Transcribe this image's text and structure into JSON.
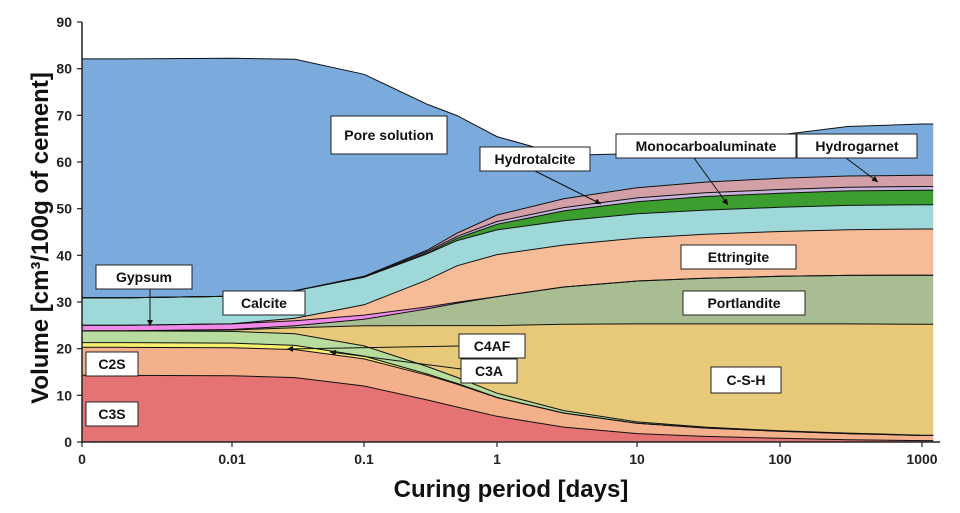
{
  "chart_data": {
    "type": "area",
    "stacked": true,
    "xlabel": "Curing period [days]",
    "ylabel": "Volume [cm³/100g of cement]",
    "x_scale": "log-with-zero",
    "x_ticks": [
      "0",
      "0.01",
      "0.1",
      "1",
      "10",
      "100",
      "1000"
    ],
    "y_ticks": [
      0,
      10,
      20,
      30,
      40,
      50,
      60,
      70,
      80,
      90
    ],
    "ylim": [
      0,
      90
    ],
    "xlim": [
      0,
      1200
    ],
    "grid": false,
    "x": [
      0,
      0.001,
      0.01,
      0.03,
      0.1,
      0.3,
      0.5,
      1,
      3,
      10,
      30,
      100,
      300,
      1000,
      1200
    ],
    "series": [
      {
        "name": "C3S",
        "color": "#e57373",
        "values": [
          14.3,
          14.3,
          14.2,
          13.8,
          12.0,
          9.0,
          7.5,
          5.5,
          3.2,
          1.8,
          1.2,
          0.8,
          0.5,
          0.3,
          0.3
        ]
      },
      {
        "name": "C2S",
        "color": "#f4b08a",
        "values": [
          6.0,
          6.0,
          6.0,
          6.0,
          5.8,
          5.3,
          4.9,
          4.0,
          3.0,
          2.2,
          1.8,
          1.5,
          1.3,
          1.1,
          1.1
        ]
      },
      {
        "name": "C3A",
        "color": "#f7f06e",
        "values": [
          1.0,
          1.0,
          1.0,
          0.9,
          0.6,
          0.25,
          0.15,
          0.05,
          0.02,
          0.0,
          0.0,
          0.0,
          0.0,
          0.0,
          0.0
        ]
      },
      {
        "name": "C4AF",
        "color": "#b8dc9e",
        "values": [
          2.5,
          2.5,
          2.5,
          2.5,
          2.2,
          1.6,
          1.3,
          0.9,
          0.5,
          0.3,
          0.2,
          0.1,
          0.1,
          0.05,
          0.05
        ]
      },
      {
        "name": "C-S-H",
        "color": "#e8c97a",
        "values": [
          0.0,
          0.0,
          0.3,
          1.3,
          4.3,
          8.8,
          11.1,
          14.5,
          18.5,
          21.0,
          22.1,
          22.9,
          23.4,
          23.8,
          23.8
        ]
      },
      {
        "name": "Portlandite",
        "color": "#a9bd92",
        "values": [
          0.0,
          0.0,
          0.1,
          0.4,
          1.4,
          3.6,
          4.8,
          6.2,
          8.0,
          9.2,
          9.8,
          10.2,
          10.4,
          10.5,
          10.5
        ]
      },
      {
        "name": "Gypsum",
        "color": "#f08ae8",
        "values": [
          1.2,
          1.2,
          1.2,
          1.1,
          0.9,
          0.4,
          0.2,
          0.0,
          0.0,
          0.0,
          0.0,
          0.0,
          0.0,
          0.0,
          0.0
        ]
      },
      {
        "name": "Ettringite",
        "color": "#f6bc98",
        "values": [
          0.0,
          0.0,
          0.05,
          0.5,
          2.2,
          5.8,
          7.8,
          9.0,
          9.0,
          9.2,
          9.4,
          9.6,
          9.8,
          9.9,
          9.9
        ]
      },
      {
        "name": "Calcite",
        "color": "#9ed8d8",
        "values": [
          5.9,
          5.9,
          5.9,
          5.9,
          5.9,
          5.6,
          5.4,
          5.3,
          5.2,
          5.2,
          5.2,
          5.2,
          5.2,
          5.2,
          5.2
        ]
      },
      {
        "name": "Monocarboaluminate",
        "color": "#3c9e2e",
        "values": [
          0.0,
          0.0,
          0.0,
          0.0,
          0.05,
          0.2,
          0.5,
          1.2,
          2.1,
          2.6,
          2.9,
          3.0,
          3.1,
          3.1,
          3.1
        ]
      },
      {
        "name": "Hydrotalcite",
        "color": "#c8b4dc",
        "values": [
          0.0,
          0.0,
          0.0,
          0.0,
          0.1,
          0.3,
          0.4,
          0.6,
          0.7,
          0.8,
          0.8,
          0.8,
          0.8,
          0.8,
          0.8
        ]
      },
      {
        "name": "Hydrogarnet",
        "color": "#d4a0a8",
        "values": [
          0.0,
          0.0,
          0.0,
          0.0,
          0.05,
          0.3,
          0.7,
          1.4,
          1.9,
          2.2,
          2.3,
          2.4,
          2.4,
          2.4,
          2.4
        ]
      },
      {
        "name": "Pore solution",
        "color": "#7aabdc",
        "values": [
          51.2,
          51.2,
          51.0,
          49.6,
          43.3,
          31.2,
          25.2,
          16.8,
          9.3,
          7.3,
          8.1,
          9.3,
          10.6,
          11.0,
          11.0
        ]
      }
    ],
    "annotations": [
      {
        "text": "Pore solution"
      },
      {
        "text": "Hydrotalcite"
      },
      {
        "text": "Monocarboaluminate"
      },
      {
        "text": "Hydrogarnet"
      },
      {
        "text": "Ettringite"
      },
      {
        "text": "Portlandite"
      },
      {
        "text": "Gypsum"
      },
      {
        "text": "Calcite"
      },
      {
        "text": "C4AF"
      },
      {
        "text": "C3A"
      },
      {
        "text": "C2S"
      },
      {
        "text": "C-S-H"
      },
      {
        "text": "C3S"
      }
    ]
  }
}
